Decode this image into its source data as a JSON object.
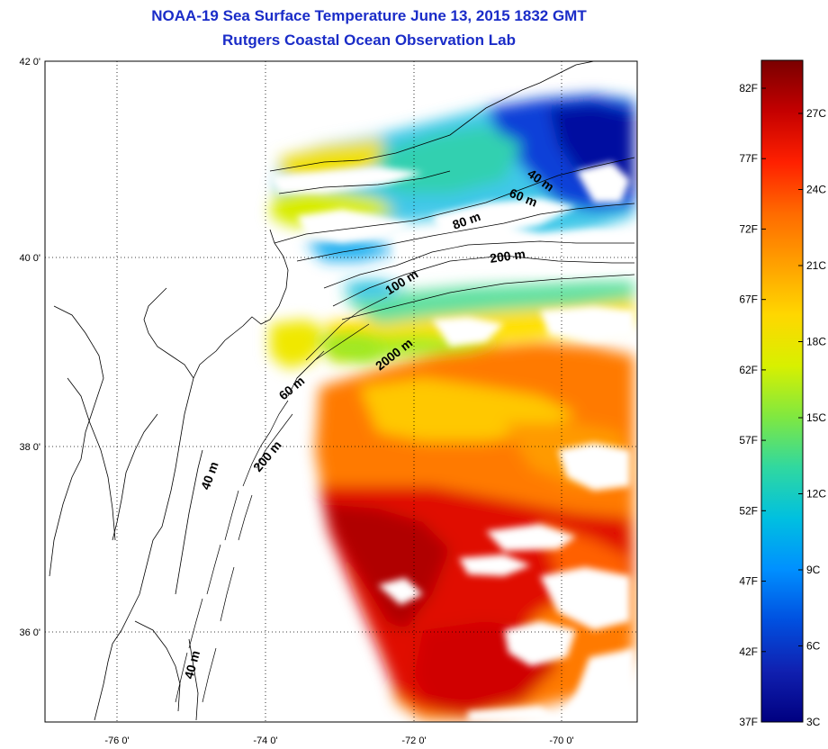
{
  "header": {
    "title": "NOAA-19 Sea Surface Temperature June 13, 2015 1832 GMT",
    "subtitle": "Rutgers Coastal Ocean Observation Lab"
  },
  "axes": {
    "lat_labels": [
      "42 0'",
      "40 0'",
      "38 0'",
      "36 0'"
    ],
    "lon_labels": [
      "-76 0'",
      "-74 0'",
      "-72 0'",
      "-70 0'"
    ]
  },
  "depth_contours": [
    "40 m",
    "60 m",
    "80 m",
    "200 m",
    "100 m",
    "2000 m",
    "60 m",
    "200 m",
    "40 m",
    "40 m"
  ],
  "colorbar": {
    "fahrenheit": [
      "82F",
      "77F",
      "72F",
      "67F",
      "62F",
      "57F",
      "52F",
      "47F",
      "42F",
      "37F"
    ],
    "celsius": [
      "27C",
      "24C",
      "21C",
      "18C",
      "15C",
      "12C",
      "9C",
      "6C",
      "3C"
    ],
    "colors": [
      "#7a0000",
      "#c40000",
      "#ff2000",
      "#ff6a00",
      "#ffa000",
      "#ffd700",
      "#d8f000",
      "#80e840",
      "#30d8a0",
      "#00c0e0",
      "#0090ff",
      "#0050e0",
      "#1020b0",
      "#000080"
    ]
  }
}
